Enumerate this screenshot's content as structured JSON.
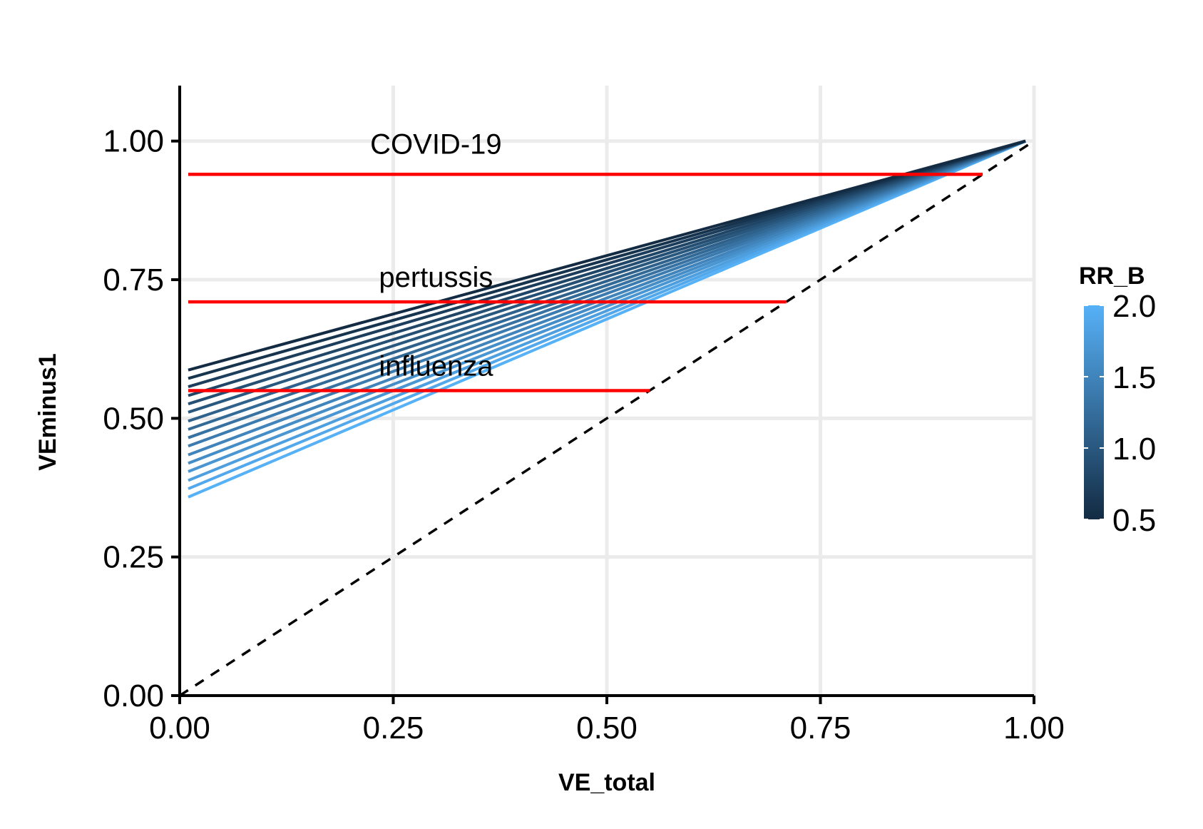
{
  "chart_data": {
    "type": "line",
    "xlabel": "VE_total",
    "ylabel": "VEminus1",
    "xlim": [
      0,
      1
    ],
    "ylim": [
      0,
      1.1
    ],
    "x_ticks": [
      "0.00",
      "0.25",
      "0.50",
      "0.75",
      "1.00"
    ],
    "y_ticks": [
      "0.00",
      "0.25",
      "0.50",
      "0.75",
      "1.00"
    ],
    "grid": true,
    "legend": {
      "title": "RR_B",
      "placement": "right",
      "type": "colorbar",
      "range": [
        0.5,
        2.0
      ],
      "ticks": [
        "0.5",
        "1.0",
        "1.5",
        "2.0"
      ],
      "low_color": "#132B43",
      "high_color": "#56B1F7"
    },
    "series_note": "Lines run from VE_total=0.01 to VE_total=0.99; each corresponds to an RR_B value",
    "series": [
      {
        "rr_b": 0.5,
        "x": [
          0.01,
          0.99
        ],
        "y": [
          0.587,
          1.0
        ]
      },
      {
        "rr_b": 0.6,
        "x": [
          0.01,
          0.99
        ],
        "y": [
          0.572,
          1.0
        ]
      },
      {
        "rr_b": 0.7,
        "x": [
          0.01,
          0.99
        ],
        "y": [
          0.557,
          1.0
        ]
      },
      {
        "rr_b": 0.8,
        "x": [
          0.01,
          0.99
        ],
        "y": [
          0.541,
          1.0
        ]
      },
      {
        "rr_b": 0.9,
        "x": [
          0.01,
          0.99
        ],
        "y": [
          0.526,
          1.0
        ]
      },
      {
        "rr_b": 1.0,
        "x": [
          0.01,
          0.99
        ],
        "y": [
          0.511,
          1.0
        ]
      },
      {
        "rr_b": 1.1,
        "x": [
          0.01,
          0.99
        ],
        "y": [
          0.495,
          1.0
        ]
      },
      {
        "rr_b": 1.2,
        "x": [
          0.01,
          0.99
        ],
        "y": [
          0.48,
          1.0
        ]
      },
      {
        "rr_b": 1.3,
        "x": [
          0.01,
          0.99
        ],
        "y": [
          0.465,
          1.0
        ]
      },
      {
        "rr_b": 1.4,
        "x": [
          0.01,
          0.99
        ],
        "y": [
          0.45,
          1.0
        ]
      },
      {
        "rr_b": 1.5,
        "x": [
          0.01,
          0.99
        ],
        "y": [
          0.434,
          1.0
        ]
      },
      {
        "rr_b": 1.6,
        "x": [
          0.01,
          0.99
        ],
        "y": [
          0.419,
          1.0
        ]
      },
      {
        "rr_b": 1.7,
        "x": [
          0.01,
          0.99
        ],
        "y": [
          0.404,
          1.0
        ]
      },
      {
        "rr_b": 1.8,
        "x": [
          0.01,
          0.99
        ],
        "y": [
          0.388,
          1.0
        ]
      },
      {
        "rr_b": 1.9,
        "x": [
          0.01,
          0.99
        ],
        "y": [
          0.373,
          1.0
        ]
      },
      {
        "rr_b": 2.0,
        "x": [
          0.01,
          0.99
        ],
        "y": [
          0.358,
          1.0
        ]
      }
    ],
    "reference_line": {
      "x": [
        0,
        1
      ],
      "y": [
        0,
        1
      ],
      "style": "dashed",
      "color": "#000000"
    },
    "annotations": [
      {
        "label": "COVID-19",
        "x": 0.3,
        "y_text": 0.995,
        "line": {
          "x": [
            0.01,
            0.94
          ],
          "y": 0.94
        }
      },
      {
        "label": "pertussis",
        "x": 0.3,
        "y_text": 0.755,
        "line": {
          "x": [
            0.01,
            0.71
          ],
          "y": 0.71
        }
      },
      {
        "label": "influenza",
        "x": 0.3,
        "y_text": 0.595,
        "line": {
          "x": [
            0.01,
            0.55
          ],
          "y": 0.55
        }
      }
    ],
    "annotation_line_color": "#FF0000"
  }
}
